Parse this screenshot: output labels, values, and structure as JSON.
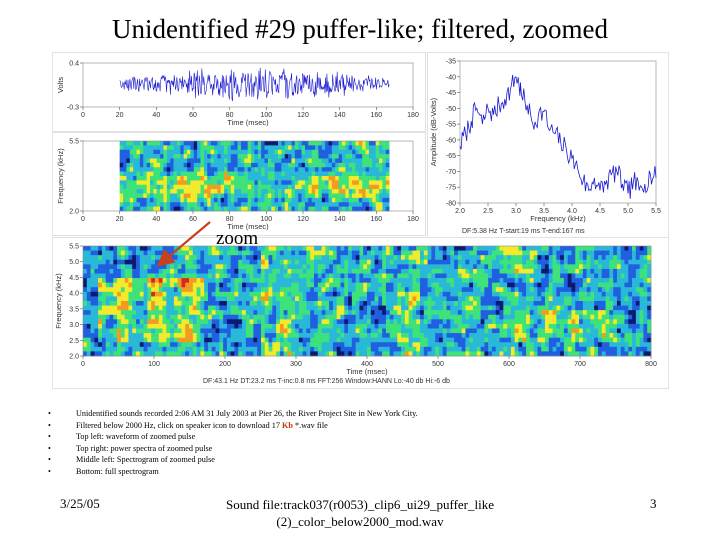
{
  "slide": {
    "title": "Unidentified #29 puffer-like; filtered, zoomed",
    "zoom_label": "zoom",
    "bullets": [
      "Unidentified sounds recorded 2:06 AM 31 July 2003 at Pier 26, the River Project Site in New York City.",
      {
        "before": "Filtered below 2000 Hz, click on speaker icon to download 17 ",
        "highlight": "Kb",
        "after": " *.wav file"
      },
      "Top left: waveform of zoomed pulse",
      "Top right: power spectra of zoomed pulse",
      "Middle left: Spectrogram of zoomed pulse",
      "Bottom: full spectrogram"
    ],
    "footer": {
      "date": "3/25/05",
      "center_line1": "Sound file:track037(r0053)_clip6_ui29_puffer_like",
      "center_line2": "(2)_color_below2000_mod.wav",
      "page": "3"
    }
  },
  "chart_data": [
    {
      "type": "line",
      "name_key": "waveform",
      "xlabel": "Time (msec)",
      "ylabel": "Volts",
      "x_ticks": [
        0,
        20,
        40,
        60,
        80,
        100,
        120,
        140,
        160,
        180
      ],
      "y_ticks": [
        0.4,
        -0.3
      ],
      "xlim": [
        0,
        180
      ],
      "ylim": [
        -0.3,
        0.4
      ],
      "signal_extent_ms": [
        20,
        167
      ],
      "peak_amplitude": 0.3,
      "color": "#1c1cd0"
    },
    {
      "type": "line",
      "name_key": "power_spectrum",
      "xlabel": "Frequency (kHz)",
      "ylabel": "Amplitude (dB-Volts)",
      "x_ticks": [
        2.0,
        2.5,
        3.0,
        3.5,
        4.0,
        4.5,
        5.0,
        5.5
      ],
      "y_ticks": [
        -35,
        -40,
        -45,
        -50,
        -55,
        -60,
        -65,
        -70,
        -75,
        -80
      ],
      "xlim": [
        2.0,
        5.5
      ],
      "ylim": [
        -80,
        -35
      ],
      "x": [
        2.0,
        2.1,
        2.2,
        2.3,
        2.4,
        2.5,
        2.6,
        2.7,
        2.8,
        2.9,
        3.0,
        3.05,
        3.1,
        3.2,
        3.3,
        3.4,
        3.5,
        3.6,
        3.7,
        3.8,
        3.9,
        4.0,
        4.1,
        4.2,
        4.3,
        4.4,
        4.5,
        4.6,
        4.7,
        4.8,
        4.9,
        5.0,
        5.1,
        5.2,
        5.3,
        5.4,
        5.5
      ],
      "y": [
        -62,
        -58,
        -54,
        -50,
        -55,
        -50,
        -52,
        -49,
        -47,
        -44,
        -40,
        -42,
        -46,
        -49,
        -55,
        -52,
        -51,
        -57,
        -58,
        -61,
        -63,
        -66,
        -69,
        -73,
        -76,
        -72,
        -76,
        -74,
        -71,
        -70,
        -74,
        -77,
        -73,
        -76,
        -74,
        -71,
        -72
      ],
      "status": "DF:5.38 Hz   T-start:19 ms   T-end:167 ms",
      "color": "#1c1cd0"
    },
    {
      "type": "heatmap",
      "name_key": "zoom_spectrogram",
      "xlabel": "Time (msec)",
      "ylabel": "Frequency (kHz)",
      "x_ticks": [
        0,
        20,
        40,
        60,
        80,
        100,
        120,
        140,
        160,
        180
      ],
      "y_ticks": [
        5.5,
        2.0
      ],
      "xlim": [
        0,
        180
      ],
      "ylim": [
        2.0,
        5.5
      ],
      "signal_extent_ms": [
        20,
        167
      ]
    },
    {
      "type": "heatmap",
      "name_key": "full_spectrogram",
      "xlabel": "Time (msec)",
      "ylabel": "Frequency (kHz)",
      "x_ticks": [
        0,
        100,
        200,
        300,
        400,
        500,
        600,
        700,
        800
      ],
      "y_ticks": [
        5.5,
        5.0,
        4.5,
        4.0,
        3.5,
        3.0,
        2.5,
        2.0
      ],
      "xlim": [
        0,
        800
      ],
      "ylim": [
        2.0,
        5.5
      ],
      "status": "DF:43.1 Hz   DT:23.2 ms   T-inc:0.8 ms   FFT:256   Window:HANN   Lo:-40 db   Hi:-6 db"
    }
  ],
  "colors": {
    "waveform": "#1c1cd0",
    "spectrum": "#1c1cd0",
    "arrow": "#c8401c",
    "colormap": [
      "#0a1a6e",
      "#1f5fe0",
      "#29b8d8",
      "#3ee27a",
      "#f4ea2c",
      "#f29b22",
      "#d8281e"
    ]
  }
}
